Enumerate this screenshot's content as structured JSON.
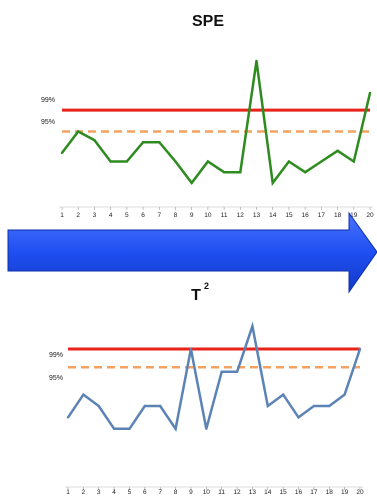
{
  "colors": {
    "limit99": "#e8231a",
    "limit95": "#f4a261",
    "spe_line": "#2e8b1f",
    "t2_line": "#5b83b5",
    "arrow": "#1f4ff0",
    "arrow_edge": "#0b2fa8"
  },
  "chart_data": [
    {
      "type": "line",
      "title": "SPE",
      "x": [
        1,
        2,
        3,
        4,
        5,
        6,
        7,
        8,
        9,
        10,
        11,
        12,
        13,
        14,
        15,
        16,
        17,
        18,
        19,
        20
      ],
      "series": [
        {
          "values": [
            2.2,
            3.2,
            2.8,
            1.8,
            1.8,
            2.7,
            2.7,
            1.8,
            0.8,
            1.8,
            1.3,
            1.3,
            6.5,
            0.8,
            1.8,
            1.3,
            1.8,
            2.3,
            1.8,
            5.0
          ]
        }
      ],
      "limits": [
        {
          "label": "99%",
          "value": 4.2
        },
        {
          "label": "95%",
          "value": 3.2
        }
      ],
      "ylim": [
        0,
        7
      ],
      "grid": false
    },
    {
      "type": "line",
      "title": "T",
      "title_superscript": "2",
      "x": [
        1,
        2,
        3,
        4,
        5,
        6,
        7,
        8,
        9,
        10,
        11,
        12,
        13,
        14,
        15,
        16,
        17,
        18,
        19,
        20
      ],
      "series": [
        {
          "values": [
            2.0,
            3.0,
            2.5,
            1.5,
            1.5,
            2.5,
            2.5,
            1.5,
            5.0,
            1.5,
            4.0,
            4.0,
            6.0,
            2.5,
            3.0,
            2.0,
            2.5,
            2.5,
            3.0,
            5.0
          ]
        }
      ],
      "limits": [
        {
          "label": "99%",
          "value": 5.0
        },
        {
          "label": "95%",
          "value": 4.2
        }
      ],
      "ylim": [
        0,
        7
      ],
      "grid": false
    }
  ]
}
